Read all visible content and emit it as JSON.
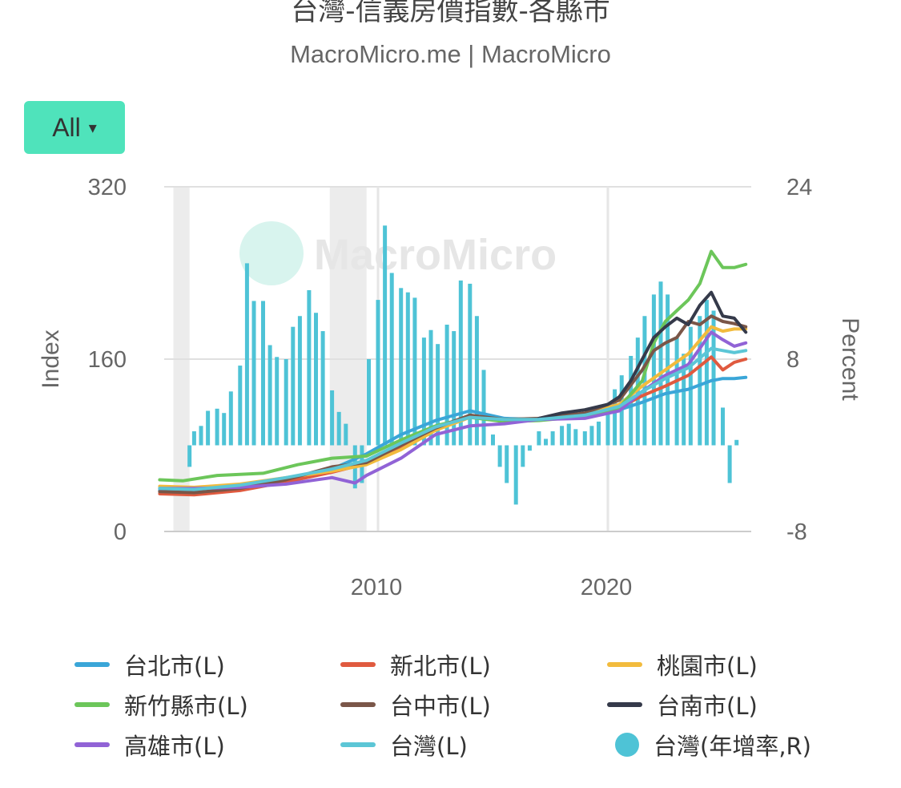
{
  "title": "台灣-信義房價指數-各縣市",
  "subtitle": "MacroMicro.me | MacroMicro",
  "range_button": {
    "label": "All",
    "caret": "▾"
  },
  "watermark": "MacroMicro",
  "colors": {
    "taipei": "#3aa6d8",
    "new_taipei": "#e05a3f",
    "taoyuan": "#f2bb3d",
    "hsinchu": "#6cc65a",
    "taichung": "#7a5648",
    "tainan": "#353a4a",
    "kaohsiung": "#9163d6",
    "taiwan": "#5cc6d6",
    "yoy": "#4ec3d6"
  },
  "chart_data": {
    "type": "line",
    "title": "台灣-信義房價指數-各縣市",
    "subtitle": "MacroMicro.me | MacroMicro",
    "x_ticks": [
      "2010",
      "2020"
    ],
    "left_axis": {
      "label": "Index",
      "ticks": [
        "0",
        "160",
        "320"
      ],
      "range": [
        0,
        320
      ]
    },
    "right_axis": {
      "label": "Percent",
      "ticks": [
        "-8",
        "8",
        "24"
      ],
      "range": [
        -8,
        24
      ]
    },
    "grid": true,
    "legend_position": "bottom",
    "shaded_periods": [
      [
        2001.1,
        2001.8
      ],
      [
        2007.9,
        2009.5
      ]
    ],
    "series": [
      {
        "key": "taipei",
        "name": "台北市(L)",
        "axis": "left",
        "years": [
          2000.5,
          2002,
          2004,
          2006,
          2008,
          2009.5,
          2011,
          2012.5,
          2014,
          2015.5,
          2017,
          2019,
          2020.5,
          2021.5,
          2022.5,
          2023.5,
          2024.5,
          2025,
          2025.5,
          2026
        ],
        "values": [
          38,
          37,
          42,
          48,
          58,
          72,
          90,
          103,
          112,
          105,
          104,
          107,
          113,
          120,
          128,
          132,
          140,
          142,
          142,
          143
        ]
      },
      {
        "key": "new_taipei",
        "name": "新北市(L)",
        "axis": "left",
        "years": [
          2000.5,
          2002,
          2004,
          2006,
          2008,
          2009.5,
          2011,
          2012.5,
          2014,
          2015.5,
          2017,
          2019,
          2020.5,
          2021.5,
          2022.5,
          2023.5,
          2024.5,
          2025,
          2025.5,
          2026
        ],
        "values": [
          35,
          34,
          38,
          46,
          55,
          63,
          78,
          95,
          107,
          104,
          104,
          108,
          115,
          126,
          135,
          145,
          162,
          150,
          157,
          160
        ]
      },
      {
        "key": "taoyuan",
        "name": "桃園市(L)",
        "axis": "left",
        "years": [
          2000.5,
          2002,
          2004,
          2006,
          2008,
          2009.5,
          2011,
          2012.5,
          2014,
          2015.5,
          2017,
          2019,
          2020.5,
          2021.5,
          2022.5,
          2023.5,
          2024.5,
          2025,
          2025.5,
          2026
        ],
        "values": [
          42,
          41,
          44,
          50,
          56,
          62,
          76,
          94,
          106,
          103,
          104,
          109,
          118,
          135,
          150,
          165,
          190,
          186,
          188,
          188
        ]
      },
      {
        "key": "hsinchu",
        "name": "新竹縣市(L)",
        "axis": "left",
        "years": [
          2000.5,
          2001.5,
          2003,
          2005,
          2006.5,
          2008,
          2009.5,
          2011,
          2012.5,
          2014,
          2015.5,
          2017,
          2019,
          2020.5,
          2021.5,
          2022,
          2022.5,
          2023,
          2023.5,
          2024,
          2024.5,
          2025,
          2025.5,
          2026
        ],
        "values": [
          48,
          47,
          52,
          54,
          62,
          68,
          70,
          85,
          98,
          106,
          102,
          103,
          107,
          115,
          140,
          175,
          195,
          205,
          215,
          230,
          260,
          245,
          245,
          248
        ]
      },
      {
        "key": "taichung",
        "name": "台中市(L)",
        "axis": "left",
        "years": [
          2000.5,
          2002,
          2004,
          2006,
          2008,
          2009.5,
          2011,
          2012.5,
          2014,
          2015.5,
          2017,
          2019,
          2020.5,
          2021.5,
          2022,
          2022.5,
          2023,
          2023.5,
          2024,
          2024.5,
          2025,
          2025.5,
          2026
        ],
        "values": [
          37,
          36,
          40,
          48,
          60,
          64,
          80,
          96,
          108,
          104,
          105,
          110,
          122,
          150,
          168,
          175,
          180,
          195,
          192,
          200,
          195,
          193,
          190
        ]
      },
      {
        "key": "tainan",
        "name": "台南市(L)",
        "axis": "left",
        "years": [
          2017,
          2018,
          2019,
          2020,
          2020.5,
          2021,
          2021.5,
          2022,
          2022.5,
          2023,
          2023.5,
          2024,
          2024.5,
          2025,
          2025.5,
          2026
        ],
        "values": [
          105,
          110,
          113,
          118,
          125,
          140,
          160,
          180,
          190,
          198,
          192,
          210,
          222,
          200,
          198,
          185
        ]
      },
      {
        "key": "kaohsiung",
        "name": "高雄市(L)",
        "axis": "left",
        "years": [
          2000.5,
          2002,
          2004,
          2006,
          2008,
          2009,
          2009.5,
          2011,
          2012.5,
          2014,
          2015.5,
          2017,
          2019,
          2020.5,
          2021.5,
          2022.5,
          2023.5,
          2024,
          2024.5,
          2025,
          2025.5,
          2026
        ],
        "values": [
          40,
          40,
          41,
          44,
          50,
          45,
          52,
          68,
          90,
          98,
          100,
          104,
          105,
          112,
          130,
          145,
          155,
          170,
          185,
          178,
          172,
          175
        ]
      },
      {
        "key": "taiwan",
        "name": "台灣(L)",
        "axis": "left",
        "years": [
          2000.5,
          2002,
          2004,
          2006,
          2008,
          2009.5,
          2011,
          2012.5,
          2014,
          2015.5,
          2017,
          2019,
          2020.5,
          2021.5,
          2022.5,
          2023.5,
          2024.5,
          2025,
          2025.5,
          2026
        ],
        "values": [
          40,
          39,
          43,
          50,
          58,
          66,
          82,
          97,
          106,
          104,
          104,
          108,
          116,
          130,
          142,
          152,
          170,
          168,
          166,
          168
        ]
      },
      {
        "key": "yoy",
        "name": "台灣(年增率,R)",
        "axis": "right",
        "type": "bar",
        "years": [
          2001.8,
          2002,
          2002.3,
          2002.6,
          2003,
          2003.3,
          2003.6,
          2004,
          2004.3,
          2004.6,
          2005,
          2005.3,
          2005.6,
          2006,
          2006.3,
          2006.6,
          2007,
          2007.3,
          2007.6,
          2008,
          2008.3,
          2008.6,
          2009,
          2009.3,
          2009.6,
          2010,
          2010.3,
          2010.6,
          2011,
          2011.3,
          2011.6,
          2012,
          2012.3,
          2012.6,
          2013,
          2013.3,
          2013.6,
          2014,
          2014.3,
          2014.6,
          2015,
          2015.3,
          2015.6,
          2016,
          2016.3,
          2016.6,
          2017,
          2017.3,
          2017.6,
          2018,
          2018.3,
          2018.6,
          2019,
          2019.3,
          2019.6,
          2020,
          2020.3,
          2020.6,
          2021,
          2021.3,
          2021.6,
          2022,
          2022.3,
          2022.6,
          2023,
          2023.3,
          2023.6,
          2024,
          2024.3,
          2024.6,
          2025,
          2025.3,
          2025.6
        ],
        "values": [
          -2,
          1.3,
          1.8,
          3.2,
          3.4,
          3.0,
          5.0,
          7.4,
          16.9,
          13.4,
          13.4,
          9.3,
          8.2,
          8.0,
          11.0,
          12.0,
          14.4,
          12.3,
          10.6,
          5.1,
          3.1,
          2.0,
          -4.0,
          -3.5,
          8.0,
          13.5,
          20.4,
          16.0,
          14.6,
          14.2,
          13.7,
          10.0,
          10.7,
          9.4,
          11.2,
          10.6,
          15.3,
          15.0,
          12.0,
          7.0,
          1.0,
          -2.0,
          -3.5,
          -5.5,
          -2.0,
          -0.5,
          1.3,
          0.6,
          1.3,
          1.8,
          2.0,
          1.5,
          1.3,
          1.8,
          2.2,
          3.5,
          5.2,
          6.5,
          8.3,
          10.0,
          12.0,
          14.0,
          15.2,
          14.0,
          10.0,
          8.5,
          11.0,
          12.0,
          13.5,
          12.5,
          3.5,
          -3.5,
          0.5
        ]
      }
    ]
  },
  "legend": [
    {
      "key": "taipei",
      "label": "台北市(L)",
      "marker": "line"
    },
    {
      "key": "new_taipei",
      "label": "新北市(L)",
      "marker": "line"
    },
    {
      "key": "taoyuan",
      "label": "桃園市(L)",
      "marker": "line"
    },
    {
      "key": "hsinchu",
      "label": "新竹縣市(L)",
      "marker": "line"
    },
    {
      "key": "taichung",
      "label": "台中市(L)",
      "marker": "line"
    },
    {
      "key": "tainan",
      "label": "台南市(L)",
      "marker": "line"
    },
    {
      "key": "kaohsiung",
      "label": "高雄市(L)",
      "marker": "line"
    },
    {
      "key": "taiwan",
      "label": "台灣(L)",
      "marker": "line"
    },
    {
      "key": "yoy",
      "label": "台灣(年增率,R)",
      "marker": "dot"
    }
  ]
}
